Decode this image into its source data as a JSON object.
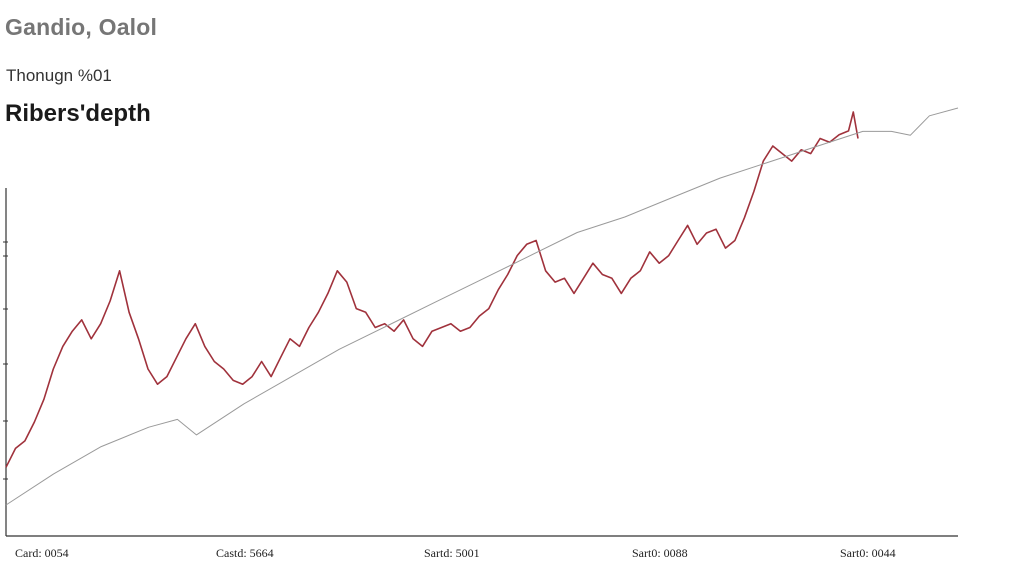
{
  "header": {
    "title": "Gandio, Oalol",
    "subtitle": "Thonugn ‮10%",
    "heading": "Ribers'depth"
  },
  "colors": {
    "series_primary": "#a0323c",
    "series_secondary": "#9a9a9a",
    "axis": "#333333",
    "title": "#767676"
  },
  "chart_data": {
    "type": "line",
    "title": "Ribers'depth",
    "xlabel": "",
    "ylabel": "",
    "xlim": [
      0,
      100
    ],
    "ylim": [
      0,
      100
    ],
    "grid": false,
    "legend": "none",
    "x_tick_labels": [
      "Card: 0054",
      "Castd: 5664",
      "Sartd: 5001",
      "Sart0: 0088",
      "Sart0: 0044"
    ],
    "x_tick_positions": [
      5,
      27,
      48,
      70,
      92
    ],
    "series": [
      {
        "color": "#a0323c",
        "x": [
          0,
          1,
          2,
          3,
          4,
          5,
          6,
          7,
          8,
          9,
          10,
          11,
          12,
          13,
          14,
          15,
          16,
          17,
          18,
          19,
          20,
          21,
          22,
          23,
          24,
          25,
          26,
          27,
          28,
          29,
          30,
          31,
          32,
          33,
          34,
          35,
          36,
          37,
          38,
          39,
          40,
          41,
          42,
          43,
          44,
          45,
          46,
          47,
          48,
          49,
          50,
          51,
          52,
          53,
          54,
          55,
          56,
          57,
          58,
          59,
          60,
          61,
          62,
          63,
          64,
          65,
          66,
          67,
          68,
          69,
          70,
          71,
          72,
          73,
          74,
          75,
          76,
          77,
          78,
          79,
          80,
          81,
          82,
          83,
          84,
          85,
          86,
          87,
          88,
          89,
          89.5,
          90
        ],
        "y": [
          6,
          11,
          13,
          18,
          24,
          32,
          38,
          42,
          45,
          40,
          44,
          50,
          58,
          47,
          40,
          32,
          28,
          30,
          35,
          40,
          44,
          38,
          34,
          32,
          29,
          28,
          30,
          34,
          30,
          35,
          40,
          38,
          43,
          47,
          52,
          58,
          55,
          48,
          47,
          43,
          44,
          42,
          45,
          40,
          38,
          42,
          43,
          44,
          42,
          43,
          46,
          48,
          53,
          57,
          62,
          65,
          66,
          58,
          55,
          56,
          52,
          56,
          60,
          57,
          56,
          52,
          56,
          58,
          63,
          60,
          62,
          66,
          70,
          65,
          68,
          69,
          64,
          66,
          72,
          79,
          87,
          91,
          89,
          87,
          90,
          89,
          93,
          92,
          94,
          95,
          100,
          93
        ],
        "x_start_offset": 0
      },
      {
        "color": "#9a9a9a",
        "x": [
          0,
          5,
          10,
          15,
          18,
          20,
          25,
          30,
          35,
          40,
          45,
          50,
          55,
          60,
          65,
          70,
          75,
          80,
          85,
          90,
          93,
          95,
          97,
          100
        ],
        "y": [
          0,
          8,
          15,
          20,
          22,
          18,
          26,
          33,
          40,
          46,
          52,
          58,
          64,
          70,
          74,
          79,
          84,
          88,
          92,
          96,
          96,
          95,
          100,
          102
        ]
      }
    ]
  }
}
